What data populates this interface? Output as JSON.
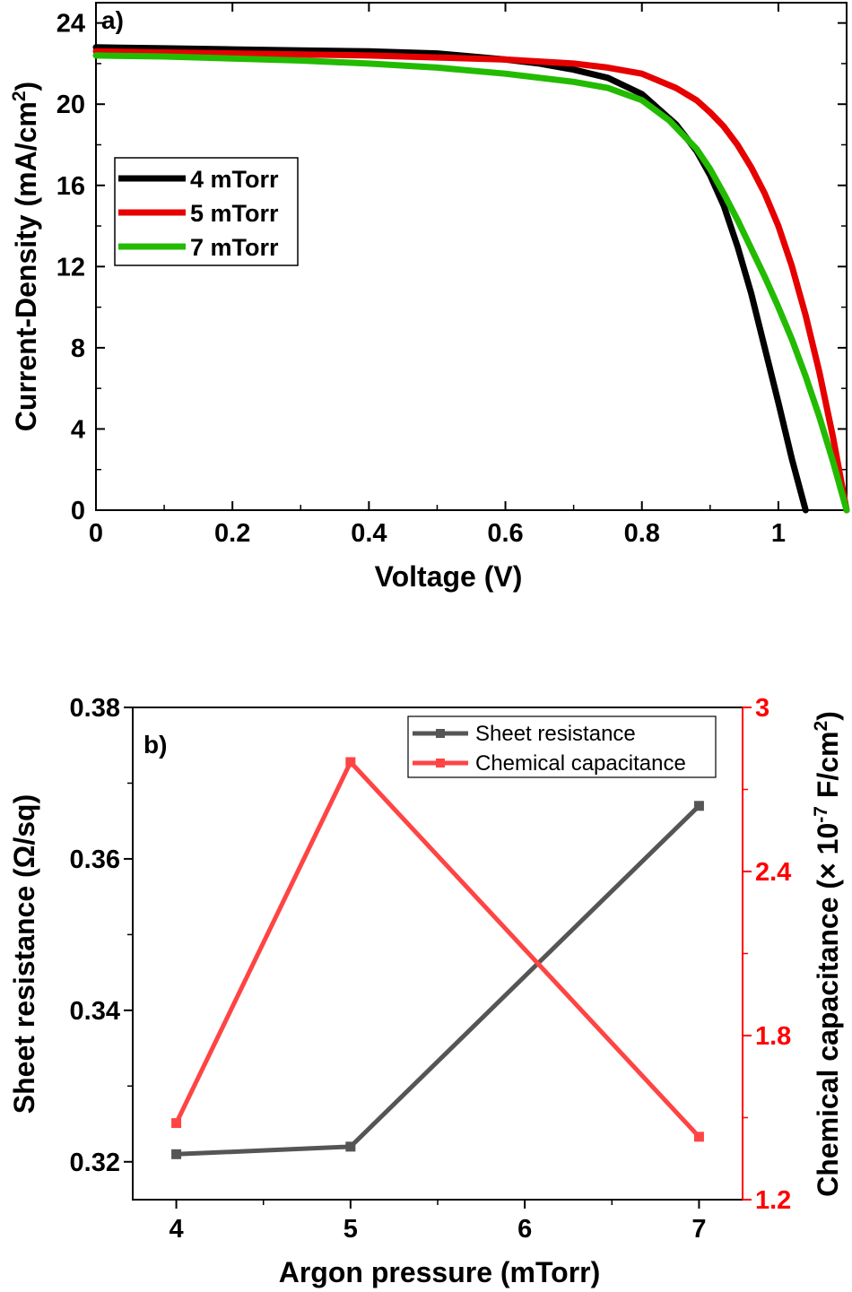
{
  "chart_data": [
    {
      "type": "line",
      "panel_label": "a)",
      "xlabel": "Voltage (V)",
      "ylabel": "Current-Density (mA/cm",
      "ylabel_sup": "2",
      "ylabel_close": ")",
      "xlim": [
        0,
        1.1
      ],
      "ylim": [
        0,
        25
      ],
      "xticks": [
        "0",
        "0.2",
        "0.4",
        "0.6",
        "0.8",
        "1"
      ],
      "yticks": [
        "0",
        "4",
        "8",
        "12",
        "16",
        "20",
        "24"
      ],
      "legend_position": "left-middle",
      "series": [
        {
          "name": "4 mTorr",
          "color": "#000000",
          "x": [
            0,
            0.1,
            0.2,
            0.3,
            0.4,
            0.5,
            0.6,
            0.65,
            0.7,
            0.75,
            0.8,
            0.85,
            0.88,
            0.9,
            0.92,
            0.94,
            0.96,
            0.98,
            1.0,
            1.02,
            1.04
          ],
          "y": [
            22.8,
            22.75,
            22.7,
            22.65,
            22.6,
            22.5,
            22.2,
            22.0,
            21.7,
            21.3,
            20.5,
            19.0,
            17.7,
            16.5,
            15.0,
            13.0,
            10.7,
            8.0,
            5.3,
            2.5,
            0
          ]
        },
        {
          "name": "5 mTorr",
          "color": "#e60000",
          "x": [
            0,
            0.1,
            0.2,
            0.3,
            0.4,
            0.5,
            0.6,
            0.7,
            0.75,
            0.8,
            0.85,
            0.88,
            0.9,
            0.92,
            0.94,
            0.96,
            0.98,
            1.0,
            1.02,
            1.04,
            1.06,
            1.08,
            1.1
          ],
          "y": [
            22.6,
            22.55,
            22.5,
            22.45,
            22.4,
            22.3,
            22.2,
            22.0,
            21.8,
            21.5,
            20.8,
            20.2,
            19.6,
            18.9,
            18.0,
            16.9,
            15.6,
            14.0,
            12.0,
            9.6,
            6.8,
            3.6,
            0
          ]
        },
        {
          "name": "7 mTorr",
          "color": "#22bb00",
          "x": [
            0,
            0.1,
            0.2,
            0.3,
            0.4,
            0.5,
            0.6,
            0.7,
            0.75,
            0.8,
            0.84,
            0.88,
            0.9,
            0.92,
            0.94,
            0.96,
            0.98,
            1.0,
            1.02,
            1.04,
            1.06,
            1.08,
            1.1
          ],
          "y": [
            22.4,
            22.35,
            22.25,
            22.15,
            22.0,
            21.8,
            21.5,
            21.1,
            20.8,
            20.2,
            19.2,
            17.8,
            16.8,
            15.6,
            14.3,
            12.9,
            11.5,
            10.0,
            8.4,
            6.6,
            4.6,
            2.4,
            0
          ]
        }
      ]
    },
    {
      "type": "line",
      "panel_label": "b)",
      "xlabel": "Argon pressure (mTorr)",
      "ylabel": "Sheet resistance (Ω/sq)",
      "ylabel_right": "Chemical capacitance (× 10",
      "ylabel_right_sup1": "-7",
      "ylabel_right_mid": " F/cm",
      "ylabel_right_sup2": "2",
      "ylabel_right_close": ")",
      "x": [
        4,
        5,
        7
      ],
      "xlim": [
        3.75,
        7.25
      ],
      "xticks": [
        "4",
        "5",
        "6",
        "7"
      ],
      "ylim": [
        0.315,
        0.38
      ],
      "yticks": [
        "0.32",
        "0.34",
        "0.36",
        "0.38"
      ],
      "ylim_right": [
        1.2,
        3.0
      ],
      "yticks_right": [
        "1.2",
        "1.8",
        "2.4",
        "3"
      ],
      "right_axis_color": "#ff0000",
      "legend_position": "top-right",
      "series": [
        {
          "name": "Sheet resistance",
          "color": "#555555",
          "axis": "left",
          "values": [
            0.321,
            0.322,
            0.367
          ]
        },
        {
          "name": "Chemical capacitance",
          "color": "#ff4444",
          "axis": "right",
          "values": [
            1.48,
            2.8,
            1.43
          ]
        }
      ]
    }
  ]
}
